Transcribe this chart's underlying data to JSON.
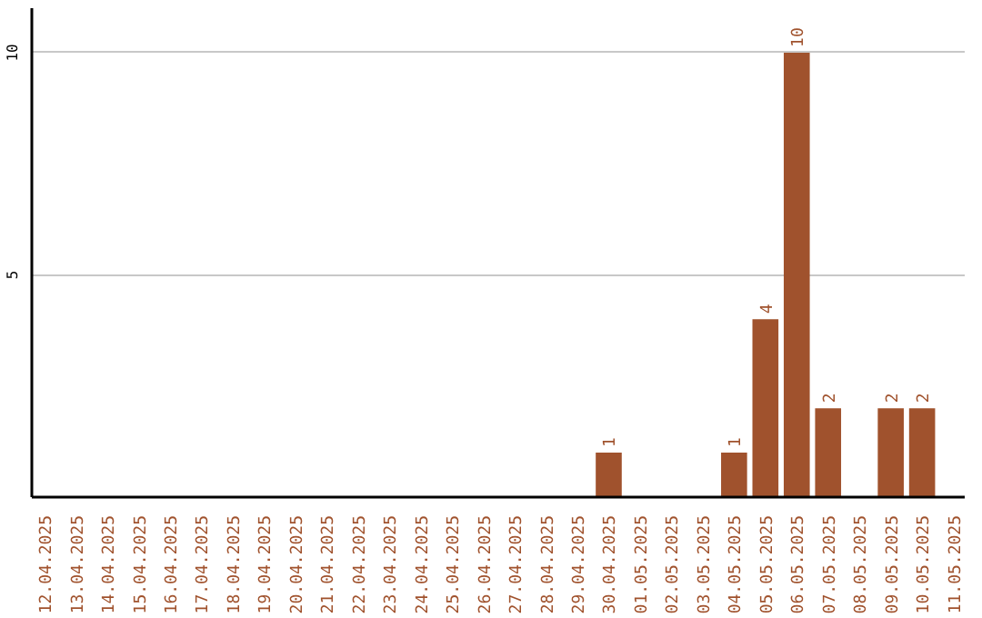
{
  "chart_data": {
    "type": "bar",
    "categories": [
      "12.04.2025",
      "13.04.2025",
      "14.04.2025",
      "15.04.2025",
      "16.04.2025",
      "17.04.2025",
      "18.04.2025",
      "19.04.2025",
      "20.04.2025",
      "21.04.2025",
      "22.04.2025",
      "23.04.2025",
      "24.04.2025",
      "25.04.2025",
      "26.04.2025",
      "27.04.2025",
      "28.04.2025",
      "29.04.2025",
      "30.04.2025",
      "01.05.2025",
      "02.05.2025",
      "03.05.2025",
      "04.05.2025",
      "05.05.2025",
      "06.05.2025",
      "07.05.2025",
      "08.05.2025",
      "09.05.2025",
      "10.05.2025",
      "11.05.2025"
    ],
    "values": [
      0,
      0,
      0,
      0,
      0,
      0,
      0,
      0,
      0,
      0,
      0,
      0,
      0,
      0,
      0,
      0,
      0,
      0,
      1,
      0,
      0,
      0,
      1,
      4,
      10,
      2,
      0,
      2,
      2,
      0
    ],
    "value_labels": [
      null,
      null,
      null,
      null,
      null,
      null,
      null,
      null,
      null,
      null,
      null,
      null,
      null,
      null,
      null,
      null,
      null,
      null,
      "1",
      null,
      null,
      null,
      "1",
      "4",
      "10",
      "2",
      null,
      "2",
      "2",
      null
    ],
    "color": "#a0522d",
    "ylim": [
      0,
      11
    ],
    "yticks": [
      5,
      10
    ],
    "grid": "y"
  }
}
